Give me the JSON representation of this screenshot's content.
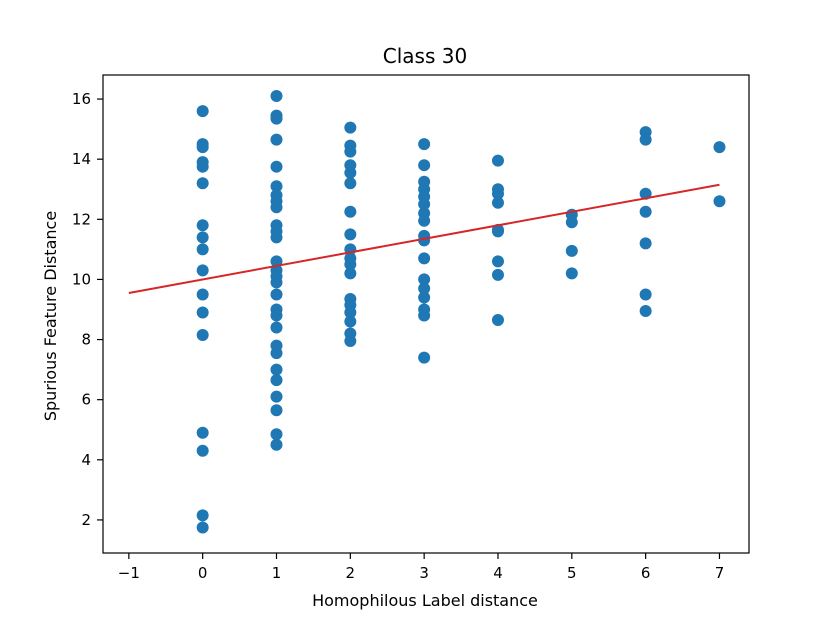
{
  "chart_data": {
    "type": "scatter",
    "title": "Class 30",
    "xlabel": "Homophilous Label distance",
    "ylabel": "Spurious Feature Distance",
    "xlim": [
      -1.35,
      7.4
    ],
    "ylim": [
      0.9,
      16.8
    ],
    "xticks": [
      -1,
      0,
      1,
      2,
      3,
      4,
      5,
      6,
      7
    ],
    "xtick_labels": [
      "−1",
      "0",
      "1",
      "2",
      "3",
      "4",
      "5",
      "6",
      "7"
    ],
    "yticks": [
      2,
      4,
      6,
      8,
      10,
      12,
      14,
      16
    ],
    "ytick_labels": [
      "2",
      "4",
      "6",
      "8",
      "10",
      "12",
      "14",
      "16"
    ],
    "grid": false,
    "marker_color": "#1f77b4",
    "line_color": "#d62728",
    "points": [
      {
        "x": 0,
        "y": 15.6
      },
      {
        "x": 0,
        "y": 14.5
      },
      {
        "x": 0,
        "y": 14.4
      },
      {
        "x": 0,
        "y": 13.9
      },
      {
        "x": 0,
        "y": 13.75
      },
      {
        "x": 0,
        "y": 13.2
      },
      {
        "x": 0,
        "y": 11.8
      },
      {
        "x": 0,
        "y": 11.4
      },
      {
        "x": 0,
        "y": 11.0
      },
      {
        "x": 0,
        "y": 10.3
      },
      {
        "x": 0,
        "y": 9.5
      },
      {
        "x": 0,
        "y": 8.9
      },
      {
        "x": 0,
        "y": 8.15
      },
      {
        "x": 0,
        "y": 4.9
      },
      {
        "x": 0,
        "y": 4.3
      },
      {
        "x": 0,
        "y": 2.15
      },
      {
        "x": 0,
        "y": 1.75
      },
      {
        "x": 1,
        "y": 16.1
      },
      {
        "x": 1,
        "y": 15.45
      },
      {
        "x": 1,
        "y": 15.35
      },
      {
        "x": 1,
        "y": 14.65
      },
      {
        "x": 1,
        "y": 13.75
      },
      {
        "x": 1,
        "y": 13.1
      },
      {
        "x": 1,
        "y": 12.8
      },
      {
        "x": 1,
        "y": 12.6
      },
      {
        "x": 1,
        "y": 12.4
      },
      {
        "x": 1,
        "y": 11.8
      },
      {
        "x": 1,
        "y": 11.6
      },
      {
        "x": 1,
        "y": 11.4
      },
      {
        "x": 1,
        "y": 10.6
      },
      {
        "x": 1,
        "y": 10.3
      },
      {
        "x": 1,
        "y": 10.1
      },
      {
        "x": 1,
        "y": 9.9
      },
      {
        "x": 1,
        "y": 9.5
      },
      {
        "x": 1,
        "y": 9.0
      },
      {
        "x": 1,
        "y": 8.8
      },
      {
        "x": 1,
        "y": 8.4
      },
      {
        "x": 1,
        "y": 7.8
      },
      {
        "x": 1,
        "y": 7.55
      },
      {
        "x": 1,
        "y": 7.0
      },
      {
        "x": 1,
        "y": 6.65
      },
      {
        "x": 1,
        "y": 6.1
      },
      {
        "x": 1,
        "y": 5.65
      },
      {
        "x": 1,
        "y": 4.85
      },
      {
        "x": 1,
        "y": 4.5
      },
      {
        "x": 2,
        "y": 15.05
      },
      {
        "x": 2,
        "y": 14.45
      },
      {
        "x": 2,
        "y": 14.25
      },
      {
        "x": 2,
        "y": 13.8
      },
      {
        "x": 2,
        "y": 13.55
      },
      {
        "x": 2,
        "y": 13.2
      },
      {
        "x": 2,
        "y": 12.25
      },
      {
        "x": 2,
        "y": 11.5
      },
      {
        "x": 2,
        "y": 11.0
      },
      {
        "x": 2,
        "y": 10.7
      },
      {
        "x": 2,
        "y": 10.5
      },
      {
        "x": 2,
        "y": 10.2
      },
      {
        "x": 2,
        "y": 9.35
      },
      {
        "x": 2,
        "y": 9.15
      },
      {
        "x": 2,
        "y": 8.9
      },
      {
        "x": 2,
        "y": 8.6
      },
      {
        "x": 2,
        "y": 8.2
      },
      {
        "x": 2,
        "y": 7.95
      },
      {
        "x": 3,
        "y": 14.5
      },
      {
        "x": 3,
        "y": 13.8
      },
      {
        "x": 3,
        "y": 13.25
      },
      {
        "x": 3,
        "y": 13.0
      },
      {
        "x": 3,
        "y": 12.75
      },
      {
        "x": 3,
        "y": 12.5
      },
      {
        "x": 3,
        "y": 12.2
      },
      {
        "x": 3,
        "y": 11.95
      },
      {
        "x": 3,
        "y": 11.45
      },
      {
        "x": 3,
        "y": 11.3
      },
      {
        "x": 3,
        "y": 10.7
      },
      {
        "x": 3,
        "y": 10.0
      },
      {
        "x": 3,
        "y": 9.7
      },
      {
        "x": 3,
        "y": 9.4
      },
      {
        "x": 3,
        "y": 9.0
      },
      {
        "x": 3,
        "y": 8.8
      },
      {
        "x": 3,
        "y": 7.4
      },
      {
        "x": 4,
        "y": 13.95
      },
      {
        "x": 4,
        "y": 13.0
      },
      {
        "x": 4,
        "y": 12.85
      },
      {
        "x": 4,
        "y": 12.55
      },
      {
        "x": 4,
        "y": 11.65
      },
      {
        "x": 4,
        "y": 11.6
      },
      {
        "x": 4,
        "y": 10.6
      },
      {
        "x": 4,
        "y": 10.15
      },
      {
        "x": 4,
        "y": 8.65
      },
      {
        "x": 5,
        "y": 12.15
      },
      {
        "x": 5,
        "y": 11.9
      },
      {
        "x": 5,
        "y": 10.95
      },
      {
        "x": 5,
        "y": 10.2
      },
      {
        "x": 6,
        "y": 14.9
      },
      {
        "x": 6,
        "y": 14.65
      },
      {
        "x": 6,
        "y": 12.85
      },
      {
        "x": 6,
        "y": 12.25
      },
      {
        "x": 6,
        "y": 11.2
      },
      {
        "x": 6,
        "y": 9.5
      },
      {
        "x": 6,
        "y": 8.95
      },
      {
        "x": 7,
        "y": 14.4
      },
      {
        "x": 7,
        "y": 12.6
      }
    ],
    "fit_line": {
      "x": [
        -1,
        7
      ],
      "y": [
        9.55,
        13.15
      ]
    }
  }
}
